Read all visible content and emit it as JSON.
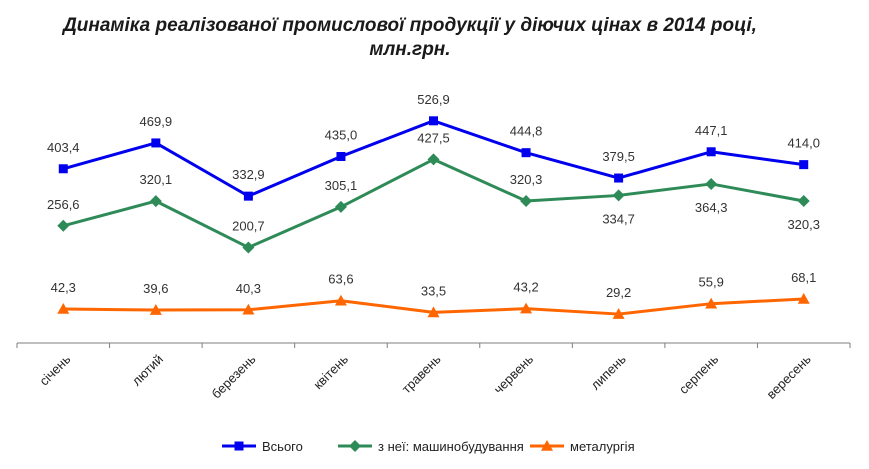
{
  "chart_data": {
    "type": "line",
    "title": "Динаміка реалізованої промислової продукції у діючих цінах в 2014 році, млн.грн.",
    "categories": [
      "січень",
      "лютий",
      "березень",
      "квітень",
      "травень",
      "червень",
      "липень",
      "серпень",
      "вересень"
    ],
    "series": [
      {
        "name": "Всього",
        "color": "#0000ee",
        "marker": "square",
        "values": [
          403.4,
          469.9,
          332.9,
          435.0,
          526.9,
          444.8,
          379.5,
          447.1,
          414.0
        ],
        "labels": [
          "403,4",
          "469,9",
          "332,9",
          "435,0",
          "526,9",
          "444,8",
          "379,5",
          "447,1",
          "414,0"
        ]
      },
      {
        "name": "з неї: машинобудування",
        "color": "#2e8b57",
        "marker": "diamond",
        "values": [
          256.6,
          320.1,
          200.7,
          305.1,
          427.5,
          320.3,
          334.7,
          364.3,
          320.3
        ],
        "labels": [
          "256,6",
          "320,1",
          "200,7",
          "305,1",
          "427,5",
          "320,3",
          "334,7",
          "364,3",
          "320,3"
        ]
      },
      {
        "name": "металургія",
        "color": "#ff6600",
        "marker": "triangle",
        "values": [
          42.3,
          39.6,
          40.3,
          63.6,
          33.5,
          43.2,
          29.2,
          55.9,
          68.1
        ],
        "labels": [
          "42,3",
          "39,6",
          "40,3",
          "63,6",
          "33,5",
          "43,2",
          "29,2",
          "55,9",
          "68,1"
        ]
      }
    ],
    "legend_position": "bottom",
    "grid": false
  }
}
